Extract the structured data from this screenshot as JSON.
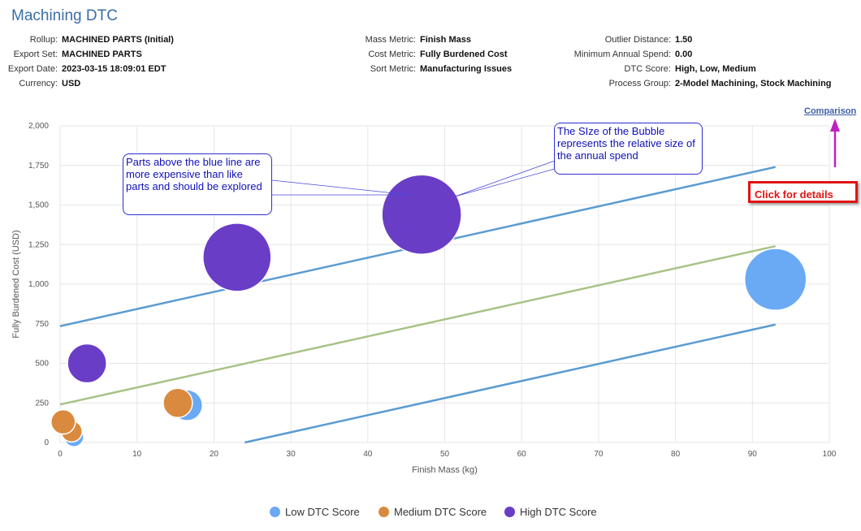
{
  "page": {
    "title": "Machining DTC"
  },
  "meta": {
    "col1": [
      {
        "label": "Rollup:",
        "value": "MACHINED PARTS (Initial)"
      },
      {
        "label": "Export Set:",
        "value": "MACHINED PARTS"
      },
      {
        "label": "Export Date:",
        "value": "2023-03-15 18:09:01 EDT"
      },
      {
        "label": "Currency:",
        "value": "USD"
      }
    ],
    "col2": [
      {
        "label": "Mass Metric:",
        "value": "Finish Mass"
      },
      {
        "label": "Cost Metric:",
        "value": "Fully Burdened Cost"
      },
      {
        "label": "Sort Metric:",
        "value": "Manufacturing Issues"
      }
    ],
    "col3": [
      {
        "label": "Outlier Distance:",
        "value": "1.50"
      },
      {
        "label": "Minimum Annual Spend:",
        "value": "0.00"
      },
      {
        "label": "DTC Score:",
        "value": "High, Low, Medium"
      },
      {
        "label": "Process Group:",
        "value": "2-Model Machining, Stock Machining"
      }
    ]
  },
  "links": {
    "comparison": "Comparison"
  },
  "annotations": {
    "details": "Click for details",
    "blue_line_note": "Parts above the blue line are more expensive than like parts and should be explored",
    "bubble_size_note": "The SIze of the Bubble represents the relative size of the annual spend"
  },
  "colors": {
    "low": "#6aaaf5",
    "medium": "#d98a3e",
    "high": "#6a3dc6",
    "upper_line": "#5a9bd0",
    "trend_line": "#a8c285",
    "lower_line": "#5a9bd0",
    "accent": "#e01414",
    "arrow": "#c020c0"
  },
  "chart_data": {
    "type": "scatter",
    "xlabel": "Finish Mass (kg)",
    "ylabel": "Fully Burdened Cost (USD)",
    "xlim": [
      0,
      100
    ],
    "ylim": [
      0,
      2000
    ],
    "xticks": [
      "0",
      "10",
      "20",
      "30",
      "40",
      "50",
      "60",
      "70",
      "80",
      "90",
      "100"
    ],
    "yticks": [
      "0",
      "250",
      "500",
      "750",
      "1,000",
      "1,250",
      "1,500",
      "1,750",
      "2,000"
    ],
    "grid": true,
    "legend_position": "bottom",
    "series": [
      {
        "name": "Low DTC Score",
        "key": "low",
        "points": [
          {
            "x": 1.8,
            "y": 35,
            "size": 12
          },
          {
            "x": 16.5,
            "y": 235,
            "size": 19
          },
          {
            "x": 93,
            "y": 1030,
            "size": 38
          }
        ]
      },
      {
        "name": "Medium DTC Score",
        "key": "medium",
        "points": [
          {
            "x": 1.5,
            "y": 70,
            "size": 13
          },
          {
            "x": 0.4,
            "y": 130,
            "size": 15
          },
          {
            "x": 15.3,
            "y": 250,
            "size": 18
          }
        ]
      },
      {
        "name": "High DTC Score",
        "key": "high",
        "points": [
          {
            "x": 3.5,
            "y": 500,
            "size": 24
          },
          {
            "x": 23,
            "y": 1170,
            "size": 42
          },
          {
            "x": 47,
            "y": 1440,
            "size": 49
          }
        ]
      }
    ],
    "lines": [
      {
        "key": "upper_line",
        "from": [
          0,
          735
        ],
        "to": [
          93,
          1740
        ]
      },
      {
        "key": "trend_line",
        "from": [
          0,
          240
        ],
        "to": [
          93,
          1240
        ]
      },
      {
        "key": "lower_line",
        "from": [
          24,
          0
        ],
        "to": [
          93,
          745
        ]
      }
    ]
  }
}
